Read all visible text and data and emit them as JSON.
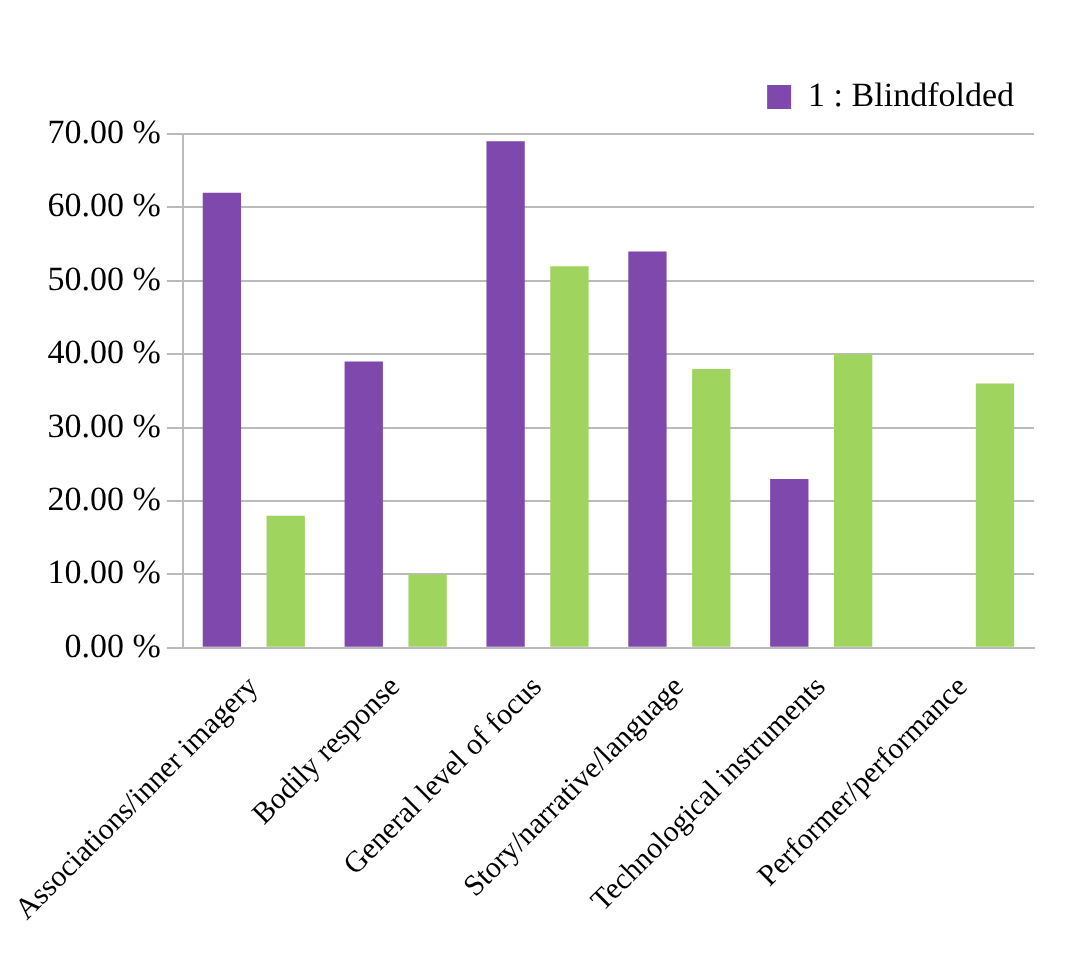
{
  "chart_data": {
    "type": "bar",
    "categories": [
      "Associations/inner imagery",
      "Bodily response",
      "General level of focus",
      "Story/narrative/language",
      "Technological instruments",
      "Performer/performance"
    ],
    "series": [
      {
        "name": "1 : Blindfolded",
        "color": "#7f48ad",
        "values": [
          62,
          39,
          69,
          54,
          23,
          0
        ]
      },
      {
        "color": "#9fd45f",
        "values": [
          18,
          10,
          52,
          38,
          40,
          36
        ]
      }
    ],
    "ylim": [
      0,
      70
    ],
    "yticks": [
      {
        "value": 0,
        "label": "0.00 %"
      },
      {
        "value": 10,
        "label": "10.00 %"
      },
      {
        "value": 20,
        "label": "20.00 %"
      },
      {
        "value": 30,
        "label": "30.00 %"
      },
      {
        "value": 40,
        "label": "40.00 %"
      },
      {
        "value": 50,
        "label": "50.00 %"
      },
      {
        "value": 60,
        "label": "60.00 %"
      },
      {
        "value": 70,
        "label": "70.00 %"
      }
    ],
    "grid": "y",
    "legend": "top right"
  }
}
